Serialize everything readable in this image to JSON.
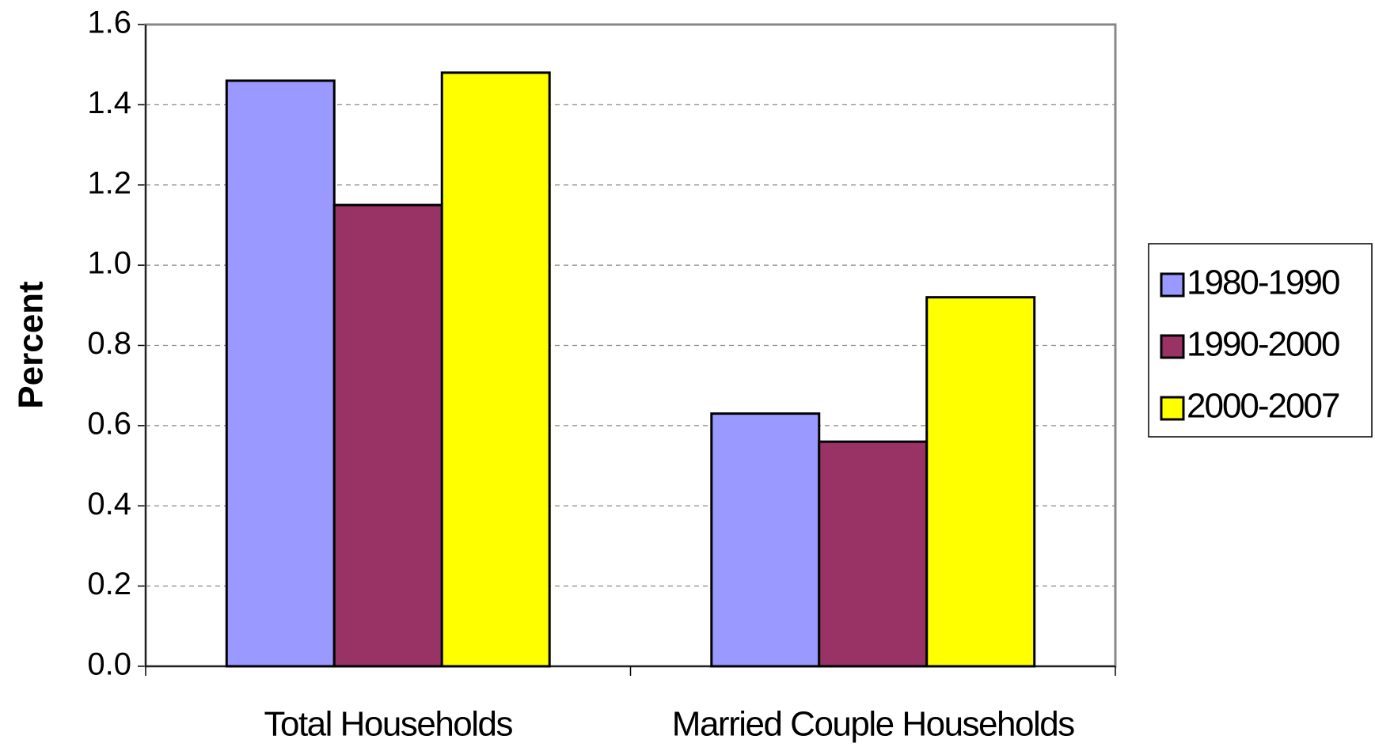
{
  "chart_data": {
    "type": "bar",
    "y_label": "Percent",
    "categories": [
      "Total Households",
      "Married Couple Households"
    ],
    "series": [
      {
        "name": "1980-1990",
        "color": "#9999ff",
        "values": [
          1.46,
          0.63
        ]
      },
      {
        "name": "1990-2000",
        "color": "#993366",
        "values": [
          1.15,
          0.56
        ]
      },
      {
        "name": "2000-2007",
        "color": "#ffff00",
        "values": [
          1.48,
          0.92
        ]
      }
    ],
    "ylim": [
      0,
      1.6
    ],
    "yticks": [
      {
        "value": 0,
        "label": "0.0"
      },
      0.2,
      0.4,
      0.6,
      0.8,
      {
        "value": 1,
        "label": "1.0"
      },
      1.2,
      1.4,
      1.6
    ],
    "grid": true,
    "legend": "right"
  }
}
